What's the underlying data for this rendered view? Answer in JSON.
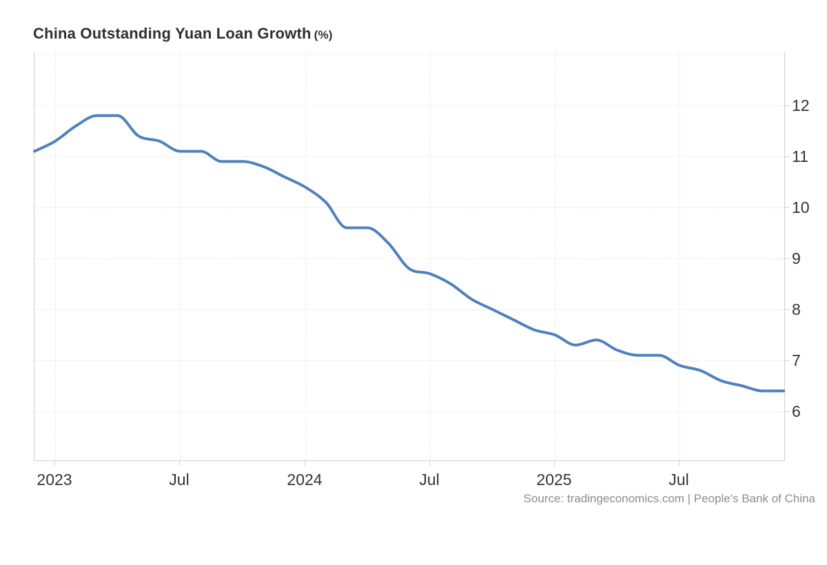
{
  "page": {
    "title": "China Outstanding Yuan Loan Growth",
    "title_unit": "(%)",
    "source_text": "Source: tradingeconomics.com | People's Bank of China"
  },
  "colors": {
    "line": "#4f81bd",
    "axis": "#cfcfcf",
    "grid": "#d8d8d8",
    "tick_label": "#333333",
    "title": "#2f2f2f",
    "source": "#8c8c8c"
  },
  "chart_data": {
    "type": "line",
    "title": "China Outstanding Yuan Loan Growth (%)",
    "ylabel": "",
    "xlabel": "",
    "unit": "percent, year-on-year",
    "grid": "dotted",
    "legend": "none",
    "ylim": [
      5.04,
      13.05
    ],
    "y_ticks": [
      12,
      11,
      10,
      9,
      8,
      7,
      6
    ],
    "x": [
      "Dec 2022",
      "Jan 2023",
      "Feb 2023",
      "Mar 2023",
      "Apr 2023",
      "May 2023",
      "Jun 2023",
      "Jul 2023",
      "Aug 2023",
      "Sep 2023",
      "Oct 2023",
      "Nov 2023",
      "Dec 2023",
      "Jan 2024",
      "Feb 2024",
      "Mar 2024",
      "Apr 2024",
      "May 2024",
      "Jun 2024",
      "Jul 2024",
      "Aug 2024",
      "Sep 2024",
      "Oct 2024",
      "Nov 2024",
      "Dec 2024",
      "Jan 2025",
      "Feb 2025",
      "Mar 2025",
      "Apr 2025",
      "May 2025",
      "Jun 2025",
      "Jul 2025",
      "Aug 2025",
      "Sep 2025",
      "Oct 2025",
      "Nov 2025",
      "Dec 2025"
    ],
    "values": [
      11.1,
      11.3,
      11.6,
      11.8,
      11.8,
      11.4,
      11.3,
      11.1,
      11.1,
      10.9,
      10.9,
      10.8,
      10.6,
      10.4,
      10.1,
      9.6,
      9.6,
      9.3,
      8.8,
      8.7,
      8.5,
      8.2,
      8.0,
      7.8,
      7.6,
      7.5,
      7.3,
      7.4,
      7.2,
      7.1,
      7.1,
      6.9,
      6.8,
      6.6,
      6.5,
      6.4,
      6.4
    ],
    "x_tick_labels": [
      {
        "label": "2023",
        "month_index": 1
      },
      {
        "label": "Jul",
        "month_index": 7
      },
      {
        "label": "2024",
        "month_index": 13
      },
      {
        "label": "Jul",
        "month_index": 19
      },
      {
        "label": "2025",
        "month_index": 25
      },
      {
        "label": "Jul",
        "month_index": 31
      }
    ]
  }
}
